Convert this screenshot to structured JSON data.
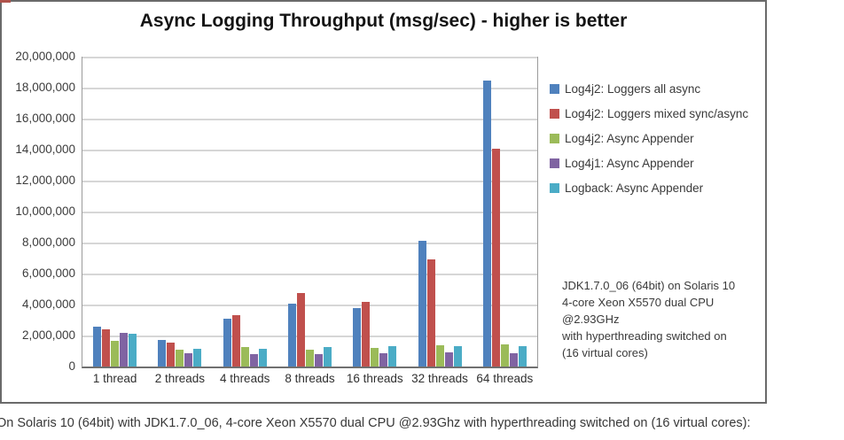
{
  "page": {
    "caption": "On Solaris 10 (64bit) with JDK1.7.0_06, 4-core Xeon X5570 dual CPU @2.93Ghz with hyperthreading switched on (16 virtual cores):"
  },
  "chart_data": {
    "type": "bar",
    "title": "Async Logging Throughput (msg/sec) - higher is better",
    "categories": [
      "1 thread",
      "2 threads",
      "4 threads",
      "8 threads",
      "16 threads",
      "32 threads",
      "64 threads"
    ],
    "series": [
      {
        "name": "Log4j2: Loggers all async",
        "color": "#4F81BD",
        "values": [
          2600000,
          1720000,
          3080000,
          4070000,
          3750000,
          8100000,
          18450000
        ]
      },
      {
        "name": "Log4j2: Loggers mixed sync/async",
        "color": "#C0504D",
        "values": [
          2380000,
          1560000,
          3310000,
          4730000,
          4150000,
          6900000,
          14050000
        ]
      },
      {
        "name": "Log4j2: Async Appender",
        "color": "#9BBB59",
        "values": [
          1640000,
          1100000,
          1260000,
          1100000,
          1200000,
          1390000,
          1450000
        ]
      },
      {
        "name": "Log4j1: Async Appender",
        "color": "#8064A2",
        "values": [
          2190000,
          870000,
          780000,
          820000,
          870000,
          910000,
          870000
        ]
      },
      {
        "name": "Logback: Async Appender",
        "color": "#4BACC6",
        "values": [
          2100000,
          1160000,
          1150000,
          1260000,
          1330000,
          1310000,
          1330000
        ]
      }
    ],
    "ylim": [
      0,
      20000000
    ],
    "y_tick_step": 2000000,
    "y_tick_labels": [
      "0",
      "2,000,000",
      "4,000,000",
      "6,000,000",
      "8,000,000",
      "10,000,000",
      "12,000,000",
      "14,000,000",
      "16,000,000",
      "18,000,000",
      "20,000,000"
    ],
    "grid": true,
    "legend_position": "right",
    "annotation": "JDK1.7.0_06 (64bit) on Solaris 10\n4-core Xeon X5570 dual CPU @2.93GHz\nwith hyperthreading switched on\n(16 virtual cores)"
  }
}
